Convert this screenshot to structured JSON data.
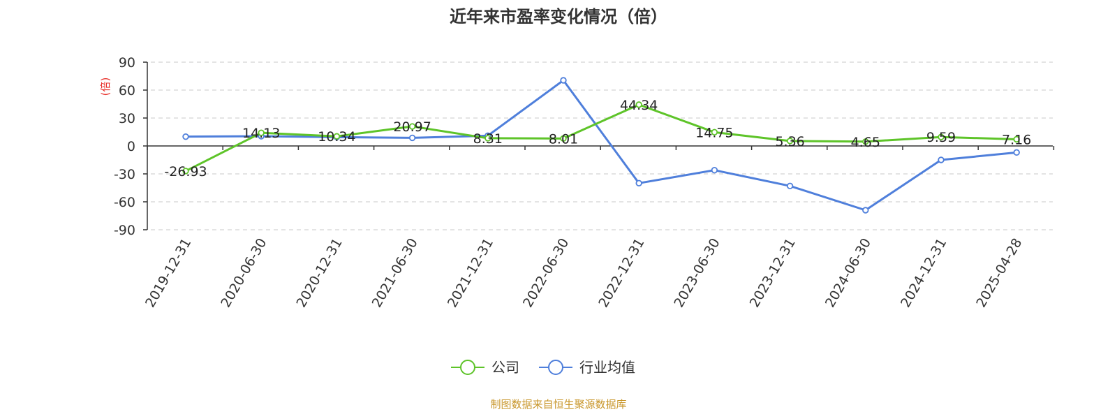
{
  "chart_data": {
    "type": "line",
    "title": "近年来市盈率变化情况（倍）",
    "ylabel": "(倍)",
    "ylim": [
      -90,
      90
    ],
    "yticks": [
      90,
      60,
      30,
      0,
      -30,
      -60,
      -90
    ],
    "grid": true,
    "legend_position": "bottom",
    "categories": [
      "2019-12-31",
      "2020-06-30",
      "2020-12-31",
      "2021-06-30",
      "2021-12-31",
      "2022-06-30",
      "2022-12-31",
      "2023-06-30",
      "2023-12-31",
      "2024-06-30",
      "2024-12-31",
      "2025-04-28"
    ],
    "series": [
      {
        "name": "公司",
        "color": "#5ec429",
        "values": [
          -26.93,
          14.13,
          10.34,
          20.97,
          8.31,
          8.01,
          44.34,
          14.75,
          5.36,
          4.65,
          9.59,
          7.16
        ],
        "labels": [
          "-26.93",
          "14.13",
          "10.34",
          "20.97",
          "8.31",
          "8.01",
          "44.34",
          "14.75",
          "5.36",
          "4.65",
          "9.59",
          "7.16"
        ]
      },
      {
        "name": "行业均值",
        "color": "#4f7fdb",
        "values": [
          10,
          10.5,
          9.5,
          8.7,
          11,
          70.5,
          -40,
          -26,
          -43,
          -69,
          -15,
          -7
        ]
      }
    ],
    "source": "制图数据来自恒生聚源数据库",
    "source_color": "#c8962a",
    "ylabel_color": "#e8302a"
  }
}
